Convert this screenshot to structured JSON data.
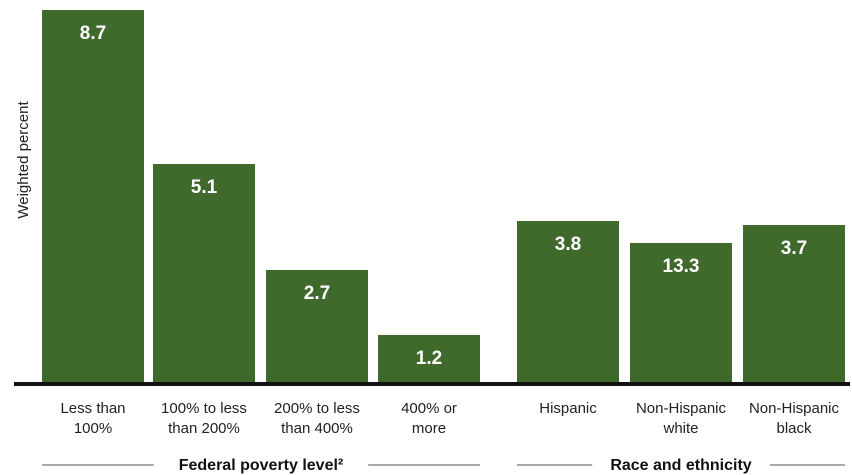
{
  "chart_data": {
    "type": "bar",
    "ylabel": "Weighted percent",
    "categories": [
      [
        "Less than",
        "100%"
      ],
      [
        "100% to less",
        "than 200%"
      ],
      [
        "200% to less",
        "than 400%"
      ],
      [
        "400% or",
        "more"
      ],
      [
        "Hispanic"
      ],
      [
        "Non-Hispanic",
        "white"
      ],
      [
        "Non-Hispanic",
        "black"
      ]
    ],
    "values": [
      8.7,
      5.1,
      2.7,
      1.2,
      3.8,
      13.3,
      3.7
    ],
    "groups": [
      {
        "label": "Federal poverty level²",
        "categories": [
          0,
          1,
          2,
          3
        ]
      },
      {
        "label": "Race and ethnicity",
        "categories": [
          4,
          5,
          6
        ]
      }
    ],
    "bar_color": "#3f6a2c",
    "value_label_color": "#ffffff",
    "axis_color": "#111111",
    "grid": false,
    "legend": false,
    "note": "Bar heights in the original image are not proportional to printed values for the race and ethnicity group (13.3 is drawn shorter than 3.8); drawn heights follow the original visual proportions."
  }
}
